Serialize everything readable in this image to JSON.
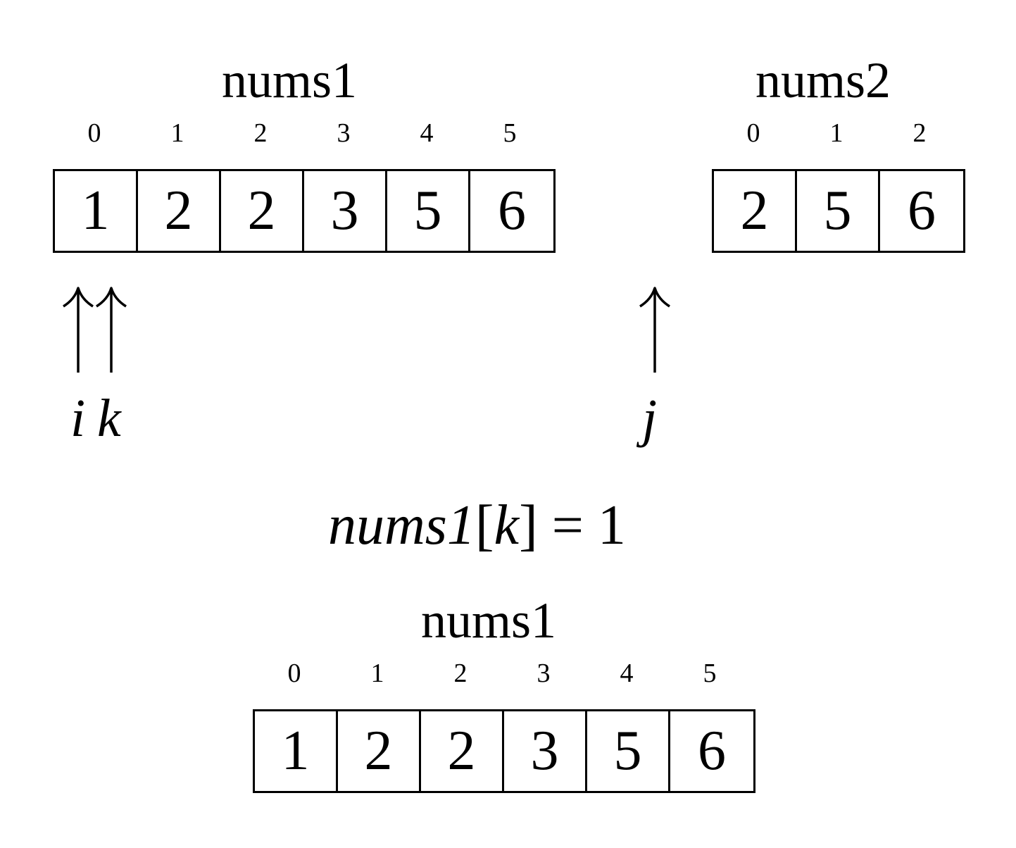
{
  "top_left": {
    "title": "nums1",
    "indices": [
      "0",
      "1",
      "2",
      "3",
      "4",
      "5"
    ],
    "values": [
      "1",
      "2",
      "2",
      "3",
      "5",
      "6"
    ]
  },
  "top_right": {
    "title": "nums2",
    "indices": [
      "0",
      "1",
      "2"
    ],
    "values": [
      "2",
      "5",
      "6"
    ]
  },
  "pointers": {
    "i": "i",
    "k": "k",
    "j": "j"
  },
  "formula": {
    "lhs_var": "nums",
    "lhs_num": "1",
    "open": "[",
    "index_var": "k",
    "close": "]",
    "rhs": " = 1"
  },
  "bottom": {
    "title": "nums1",
    "indices": [
      "0",
      "1",
      "2",
      "3",
      "4",
      "5"
    ],
    "values": [
      "1",
      "2",
      "2",
      "3",
      "5",
      "6"
    ]
  }
}
